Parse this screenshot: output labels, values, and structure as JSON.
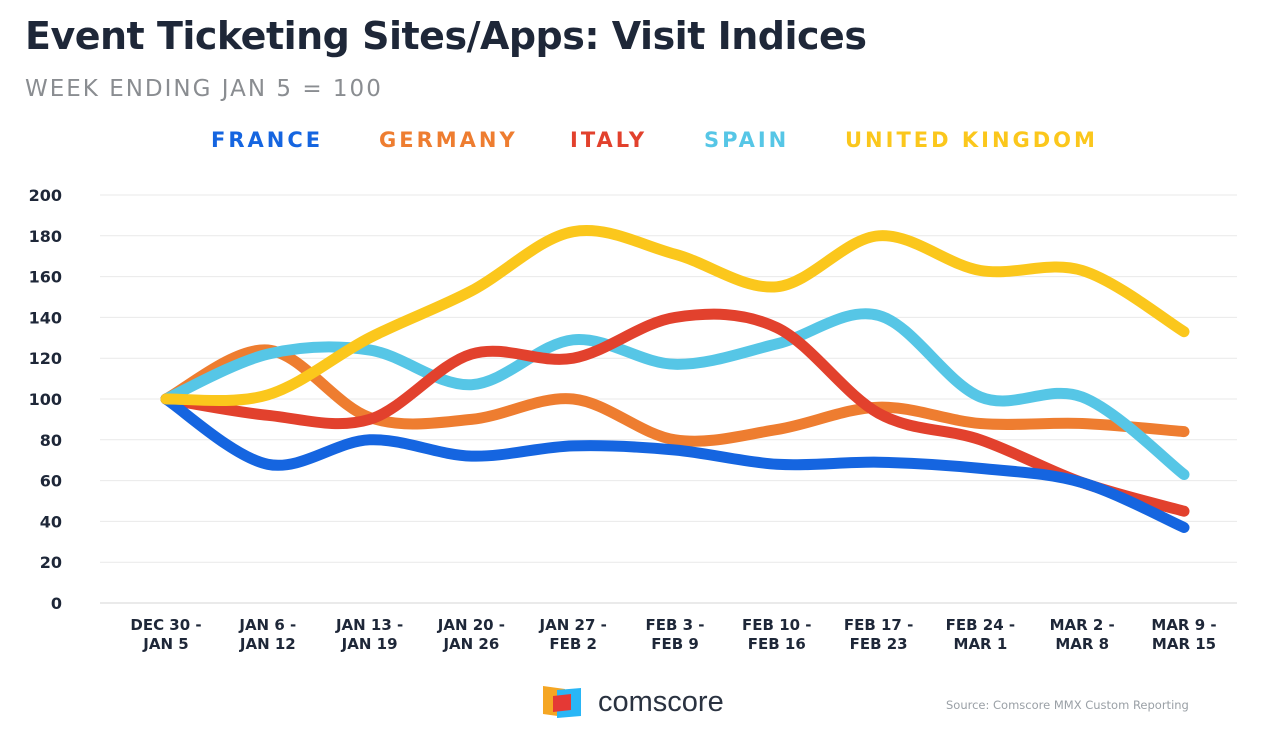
{
  "header": {
    "title": "Event Ticketing Sites/Apps: Visit Indices",
    "subtitle": "WEEK ENDING JAN 5 = 100"
  },
  "chart_data": {
    "type": "line",
    "title": "Event Ticketing Sites/Apps: Visit Indices",
    "subtitle": "WEEK ENDING JAN 5 = 100",
    "categories": [
      [
        "DEC 30 -",
        "JAN 5"
      ],
      [
        "JAN 6 -",
        "JAN 12"
      ],
      [
        "JAN 13 -",
        "JAN 19"
      ],
      [
        "JAN 20 -",
        "JAN 26"
      ],
      [
        "JAN 27 -",
        "FEB 2"
      ],
      [
        "FEB 3 -",
        "FEB 9"
      ],
      [
        "FEB 10 -",
        "FEB 16"
      ],
      [
        "FEB 17 -",
        "FEB 23"
      ],
      [
        "FEB 24 -",
        "MAR 1"
      ],
      [
        "MAR 2 -",
        "MAR 8"
      ],
      [
        "MAR 9 -",
        "MAR 15"
      ]
    ],
    "ylim": [
      0,
      200
    ],
    "yticks": [
      0,
      20,
      40,
      60,
      80,
      100,
      120,
      140,
      160,
      180,
      200
    ],
    "grid": true,
    "legend_position": "top",
    "series": [
      {
        "name": "FRANCE",
        "color": "#1565e0",
        "values": [
          100,
          68,
          80,
          72,
          77,
          75,
          68,
          69,
          66,
          59,
          37
        ]
      },
      {
        "name": "GERMANY",
        "color": "#ee7d30",
        "values": [
          100,
          124,
          91,
          90,
          100,
          80,
          85,
          96,
          88,
          88,
          84
        ]
      },
      {
        "name": "ITALY",
        "color": "#e2412d",
        "values": [
          100,
          92,
          90,
          122,
          120,
          140,
          135,
          93,
          80,
          59,
          45
        ]
      },
      {
        "name": "SPAIN",
        "color": "#56c6e6",
        "values": [
          100,
          122,
          124,
          107,
          129,
          117,
          127,
          141,
          101,
          101,
          63
        ]
      },
      {
        "name": "UNITED KINGDOM",
        "color": "#fbc71c",
        "values": [
          100,
          102,
          130,
          153,
          182,
          171,
          155,
          180,
          163,
          163,
          133
        ]
      }
    ]
  },
  "brand": {
    "name": "comscore"
  },
  "source": "Source: Comscore MMX Custom Reporting"
}
